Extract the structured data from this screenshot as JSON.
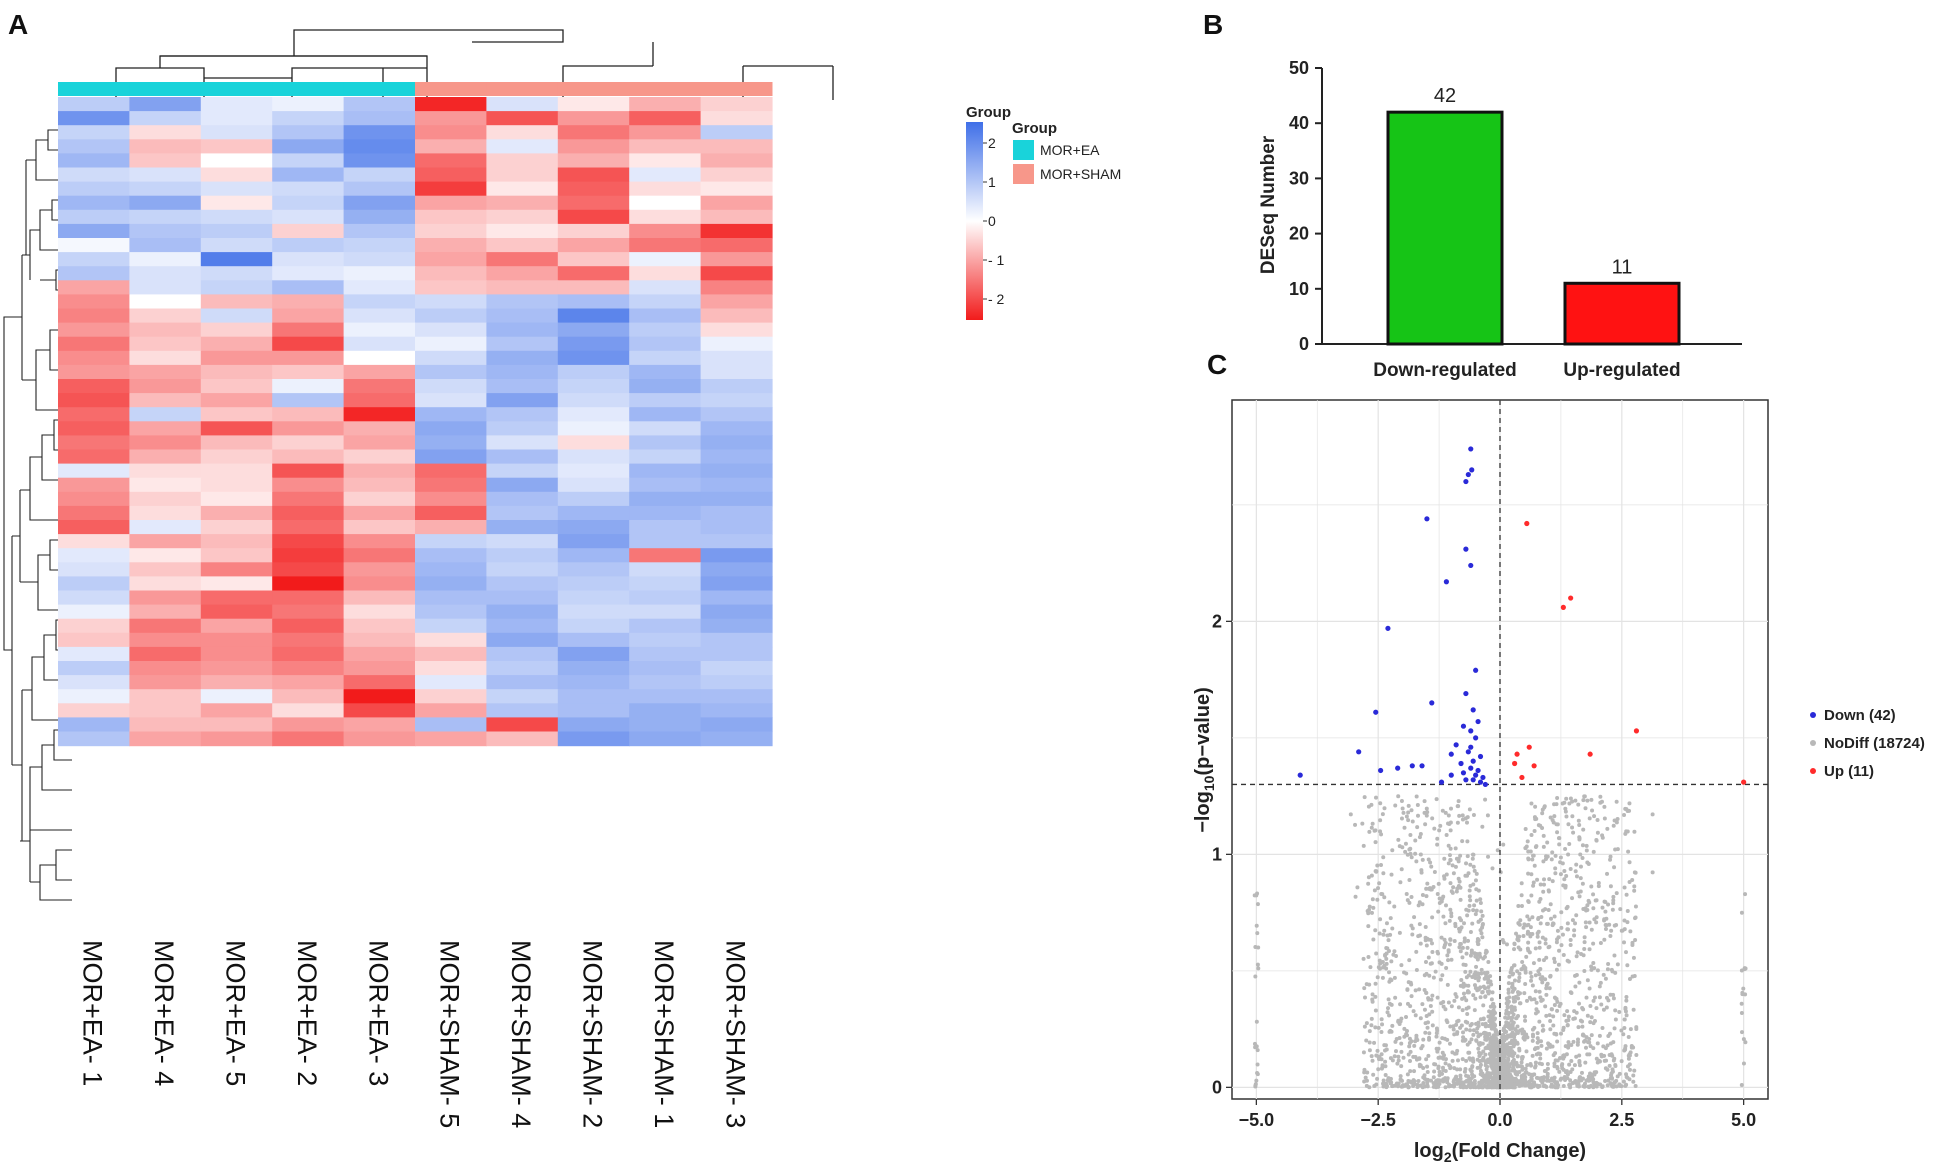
{
  "panels": {
    "a": "A",
    "b": "B",
    "c": "C"
  },
  "heatmap": {
    "group_legend_title": "Group",
    "color_scale_title": "Group",
    "groups": [
      {
        "name": "MOR+EA",
        "color": "#19d3da"
      },
      {
        "name": "MOR+SHAM",
        "color": "#f7978a"
      }
    ],
    "scale_ticks": [
      "2",
      "1",
      "0",
      "- 1",
      "- 2"
    ],
    "scale_colors": {
      "high": "#3f6fe8",
      "mid": "#ffffff",
      "low": "#f21b1b"
    },
    "samples": [
      "MOR+EA- 1",
      "MOR+EA- 4",
      "MOR+EA- 5",
      "MOR+EA- 2",
      "MOR+EA- 3",
      "MOR+SHAM- 5",
      "MOR+SHAM- 4",
      "MOR+SHAM- 2",
      "MOR+SHAM- 1",
      "MOR+SHAM- 3"
    ],
    "sample_groups": [
      0,
      0,
      0,
      0,
      0,
      1,
      1,
      1,
      1,
      1
    ],
    "values": [
      [
        0.7,
        1.3,
        0.3,
        0.2,
        0.8,
        -1.9,
        0.4,
        -0.2,
        -0.7,
        -0.4
      ],
      [
        1.5,
        0.6,
        0.3,
        0.6,
        0.9,
        -0.9,
        -1.5,
        -0.9,
        -1.4,
        -0.3
      ],
      [
        0.6,
        -0.3,
        0.4,
        0.8,
        1.5,
        -1.0,
        -0.3,
        -1.2,
        -0.9,
        0.7
      ],
      [
        0.8,
        -0.6,
        -0.5,
        1.2,
        1.6,
        -0.7,
        0.3,
        -0.9,
        -0.6,
        -0.6
      ],
      [
        1.0,
        -0.5,
        0.0,
        0.6,
        1.5,
        -1.3,
        -0.4,
        -0.7,
        -0.2,
        -0.7
      ],
      [
        0.5,
        0.4,
        -0.3,
        1.0,
        0.6,
        -1.4,
        -0.4,
        -1.5,
        0.3,
        -0.4
      ],
      [
        0.7,
        0.6,
        0.4,
        0.5,
        0.8,
        -1.7,
        -0.2,
        -1.4,
        -0.3,
        -0.2
      ],
      [
        1.0,
        1.2,
        -0.2,
        0.6,
        1.3,
        -0.8,
        -0.7,
        -1.3,
        0.0,
        -0.8
      ],
      [
        0.7,
        0.6,
        0.5,
        0.4,
        1.1,
        -0.5,
        -0.4,
        -1.6,
        -0.3,
        -0.6
      ],
      [
        1.2,
        0.8,
        0.7,
        -0.4,
        0.8,
        -0.4,
        -0.2,
        -0.4,
        -1.0,
        -1.8
      ],
      [
        0.1,
        0.9,
        0.5,
        0.7,
        0.6,
        -0.7,
        -0.5,
        -0.8,
        -1.2,
        -1.3
      ],
      [
        0.6,
        0.2,
        1.8,
        0.4,
        0.5,
        -0.8,
        -1.2,
        -0.5,
        0.2,
        -0.9
      ],
      [
        0.8,
        0.4,
        0.5,
        0.3,
        0.2,
        -0.6,
        -0.8,
        -1.3,
        -0.3,
        -1.6
      ],
      [
        -0.8,
        0.4,
        0.6,
        0.9,
        0.3,
        -0.5,
        -0.6,
        -0.6,
        0.4,
        -1.1
      ],
      [
        -1.0,
        0.0,
        -0.6,
        -0.7,
        0.6,
        0.5,
        0.8,
        0.9,
        0.6,
        -0.8
      ],
      [
        -1.1,
        -0.4,
        0.5,
        -0.8,
        0.4,
        0.7,
        0.9,
        1.7,
        0.9,
        -0.6
      ],
      [
        -0.9,
        -0.6,
        -0.4,
        -1.2,
        0.2,
        0.4,
        1.0,
        1.2,
        0.7,
        -0.3
      ],
      [
        -1.2,
        -0.5,
        -0.7,
        -1.6,
        0.4,
        0.2,
        0.8,
        1.4,
        0.8,
        0.2
      ],
      [
        -1.0,
        -0.3,
        -0.9,
        -0.9,
        0.0,
        0.5,
        1.1,
        1.5,
        0.6,
        0.4
      ],
      [
        -0.9,
        -0.8,
        -0.6,
        -0.5,
        -0.8,
        0.8,
        1.0,
        0.7,
        1.0,
        0.4
      ],
      [
        -1.4,
        -0.9,
        -0.5,
        0.2,
        -1.2,
        0.5,
        0.9,
        0.6,
        1.1,
        0.7
      ],
      [
        -1.5,
        -0.6,
        -0.8,
        0.8,
        -1.3,
        0.4,
        1.3,
        0.5,
        0.7,
        0.6
      ],
      [
        -1.3,
        0.6,
        -0.5,
        -0.6,
        -1.9,
        1.0,
        0.8,
        0.3,
        1.0,
        0.8
      ],
      [
        -1.4,
        -0.8,
        -1.5,
        -0.9,
        -0.7,
        1.2,
        0.7,
        0.2,
        0.5,
        1.0
      ],
      [
        -1.2,
        -1.0,
        -0.6,
        -0.4,
        -0.8,
        1.1,
        0.4,
        -0.3,
        0.8,
        1.1
      ],
      [
        -1.3,
        -0.7,
        -0.4,
        -0.6,
        -0.4,
        1.3,
        0.9,
        0.4,
        0.6,
        1.0
      ],
      [
        0.3,
        -0.3,
        -0.3,
        -1.5,
        -0.7,
        -1.3,
        0.6,
        0.3,
        1.0,
        1.1
      ],
      [
        -0.9,
        -0.2,
        -0.3,
        -1.0,
        -0.6,
        -1.2,
        1.2,
        0.4,
        0.9,
        1.0
      ],
      [
        -1.0,
        -0.4,
        -0.2,
        -1.2,
        -0.4,
        -1.0,
        0.9,
        0.7,
        1.1,
        1.1
      ],
      [
        -1.2,
        -0.3,
        -0.7,
        -1.4,
        -0.8,
        -1.4,
        0.8,
        1.0,
        1.0,
        0.9
      ],
      [
        -1.4,
        0.3,
        -0.4,
        -1.3,
        -0.5,
        -0.7,
        1.1,
        1.2,
        0.8,
        0.9
      ],
      [
        -0.3,
        -0.8,
        -0.6,
        -1.6,
        -1.0,
        0.6,
        0.5,
        1.3,
        0.8,
        0.8
      ],
      [
        0.3,
        -0.2,
        -0.5,
        -1.7,
        -1.2,
        0.9,
        0.7,
        1.0,
        -1.2,
        1.4
      ],
      [
        0.4,
        -0.5,
        -1.1,
        -1.6,
        -0.9,
        1.0,
        0.6,
        0.8,
        0.5,
        1.2
      ],
      [
        0.7,
        -0.3,
        -0.2,
        -2.0,
        -1.0,
        1.1,
        0.8,
        0.7,
        0.6,
        1.3
      ],
      [
        0.5,
        -0.9,
        -1.3,
        -1.3,
        -0.6,
        0.9,
        0.9,
        0.6,
        0.7,
        1.0
      ],
      [
        0.2,
        -0.7,
        -1.4,
        -1.2,
        -0.3,
        0.8,
        1.1,
        0.5,
        0.5,
        1.2
      ],
      [
        -0.4,
        -1.2,
        -0.8,
        -1.4,
        -0.5,
        0.6,
        1.0,
        0.6,
        0.8,
        1.1
      ],
      [
        -0.5,
        -1.0,
        -1.0,
        -1.2,
        -0.6,
        -0.3,
        1.2,
        0.9,
        0.7,
        0.8
      ],
      [
        0.3,
        -1.3,
        -1.0,
        -1.3,
        -0.8,
        -0.6,
        0.8,
        1.3,
        0.8,
        0.8
      ],
      [
        0.7,
        -1.0,
        -0.9,
        -1.1,
        -0.9,
        -0.3,
        0.7,
        1.1,
        0.9,
        0.6
      ],
      [
        0.4,
        -0.9,
        -0.7,
        -0.8,
        -1.3,
        0.3,
        0.9,
        1.0,
        0.8,
        0.7
      ],
      [
        0.2,
        -0.5,
        0.2,
        -0.6,
        -2.0,
        -0.4,
        0.6,
        0.9,
        0.9,
        0.9
      ],
      [
        -0.4,
        -0.5,
        -0.8,
        -0.3,
        -1.6,
        -0.8,
        0.8,
        0.9,
        1.1,
        1.0
      ],
      [
        1.0,
        -0.6,
        -0.6,
        -0.9,
        -0.8,
        0.9,
        -1.6,
        1.2,
        1.1,
        1.2
      ],
      [
        0.8,
        -0.8,
        -0.9,
        -1.2,
        -0.9,
        -0.8,
        -0.6,
        1.4,
        1.2,
        1.1
      ]
    ]
  },
  "bar_chart": {
    "type": "bar",
    "categories": [
      "Down-regulated",
      "Up-regulated"
    ],
    "values": [
      42,
      11
    ],
    "colors": [
      "#16c416",
      "#ff1212"
    ],
    "ylabel": "DESeq Number",
    "ylim": [
      0,
      50
    ],
    "yticks": [
      "0",
      "10",
      "20",
      "30",
      "40",
      "50"
    ]
  },
  "chart_data": [
    {
      "type": "bar",
      "title": "B",
      "categories": [
        "Down-regulated",
        "Up-regulated"
      ],
      "values": [
        42,
        11
      ],
      "ylabel": "DESeq Number",
      "ylim": [
        0,
        50
      ]
    },
    {
      "type": "scatter",
      "title": "C",
      "xlabel": "log₂(Fold Change)",
      "ylabel": "−log₁₀(p−value)",
      "xlim": [
        -5.5,
        5.5
      ],
      "ylim": [
        -0.05,
        2.95
      ],
      "thresholds": {
        "p_value_line": 1.3,
        "fold_change_line": 0
      },
      "legend": [
        {
          "label": "Down (42)",
          "color": "#2a2ad8"
        },
        {
          "label": "NoDiff (18724)",
          "color": "#b8b8b8"
        },
        {
          "label": "Up (11)",
          "color": "#ff2b2b"
        }
      ]
    }
  ],
  "volcano": {
    "xlabel_main": "log",
    "xlabel_sub": "2",
    "xlabel_rest": "(Fold Change)",
    "ylabel_main": "−log",
    "ylabel_sub": "10",
    "ylabel_rest": "(p−value)",
    "xticks": [
      {
        "v": -5,
        "label": "−5.0"
      },
      {
        "v": -2.5,
        "label": "−2.5"
      },
      {
        "v": 0,
        "label": "0.0"
      },
      {
        "v": 2.5,
        "label": "2.5"
      },
      {
        "v": 5,
        "label": "5.0"
      }
    ],
    "yticks": [
      {
        "v": 0,
        "label": "0"
      },
      {
        "v": 1,
        "label": "1"
      },
      {
        "v": 2,
        "label": "2"
      }
    ],
    "legend": [
      {
        "label": "Down (42)",
        "color": "#2a2ad8"
      },
      {
        "label": "NoDiff (18724)",
        "color": "#b8b8b8"
      },
      {
        "label": "Up (11)",
        "color": "#ff2b2b"
      }
    ],
    "down_points": [
      [
        -0.6,
        2.74
      ],
      [
        -0.65,
        2.63
      ],
      [
        -0.58,
        2.65
      ],
      [
        -0.7,
        2.6
      ],
      [
        -1.5,
        2.44
      ],
      [
        -0.7,
        2.31
      ],
      [
        -0.6,
        2.24
      ],
      [
        -1.1,
        2.17
      ],
      [
        -2.3,
        1.97
      ],
      [
        -0.5,
        1.79
      ],
      [
        -0.7,
        1.69
      ],
      [
        -1.4,
        1.65
      ],
      [
        -0.55,
        1.62
      ],
      [
        -2.55,
        1.61
      ],
      [
        -0.45,
        1.57
      ],
      [
        -0.75,
        1.55
      ],
      [
        -0.6,
        1.53
      ],
      [
        -0.5,
        1.5
      ],
      [
        -0.9,
        1.47
      ],
      [
        -0.6,
        1.46
      ],
      [
        -2.9,
        1.44
      ],
      [
        -0.65,
        1.44
      ],
      [
        -1.0,
        1.43
      ],
      [
        -0.4,
        1.42
      ],
      [
        -0.55,
        1.4
      ],
      [
        -0.8,
        1.39
      ],
      [
        -1.6,
        1.38
      ],
      [
        -2.1,
        1.37
      ],
      [
        -0.6,
        1.37
      ],
      [
        -0.45,
        1.36
      ],
      [
        -0.75,
        1.35
      ],
      [
        -2.45,
        1.36
      ],
      [
        -0.5,
        1.34
      ],
      [
        -1.8,
        1.38
      ],
      [
        -0.35,
        1.33
      ],
      [
        -4.1,
        1.34
      ],
      [
        -0.4,
        1.31
      ],
      [
        -0.55,
        1.32
      ],
      [
        -1.2,
        1.31
      ],
      [
        -0.3,
        1.3
      ],
      [
        -0.7,
        1.32
      ],
      [
        -1.0,
        1.34
      ]
    ],
    "up_points": [
      [
        0.55,
        2.42
      ],
      [
        1.45,
        2.1
      ],
      [
        1.3,
        2.06
      ],
      [
        2.8,
        1.53
      ],
      [
        0.6,
        1.46
      ],
      [
        0.35,
        1.43
      ],
      [
        1.85,
        1.43
      ],
      [
        0.3,
        1.39
      ],
      [
        0.7,
        1.38
      ],
      [
        0.45,
        1.33
      ],
      [
        5.0,
        1.31
      ]
    ]
  }
}
